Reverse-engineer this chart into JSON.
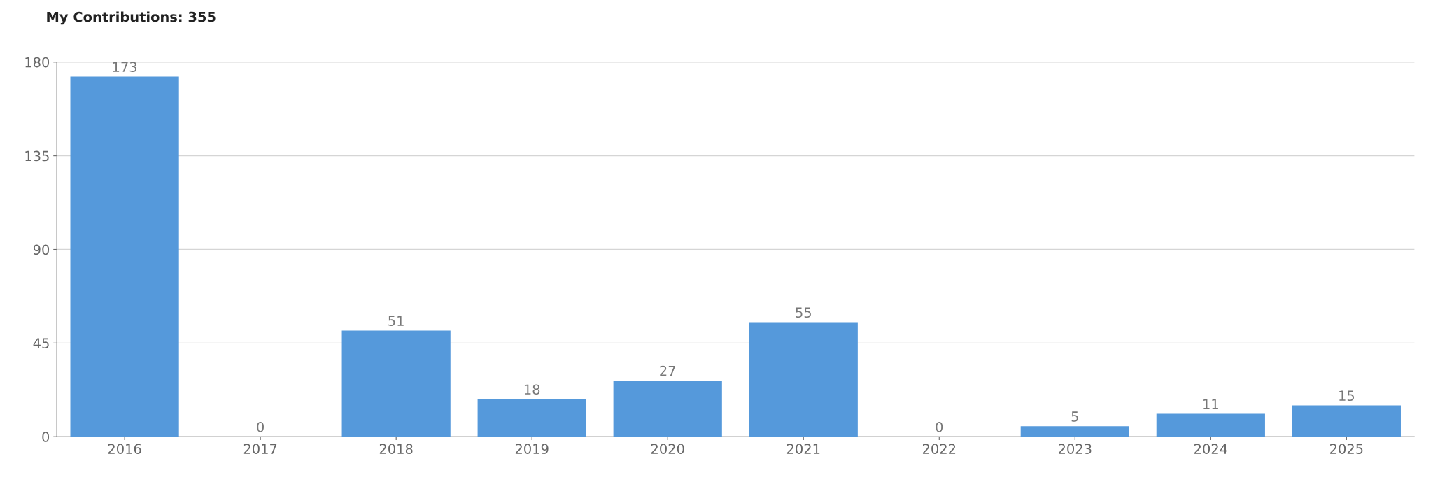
{
  "chart_data": {
    "type": "bar",
    "title": "My Contributions: 355",
    "categories": [
      "2016",
      "2017",
      "2018",
      "2019",
      "2020",
      "2021",
      "2022",
      "2023",
      "2024",
      "2025"
    ],
    "values": [
      173,
      0,
      51,
      18,
      27,
      55,
      0,
      5,
      11,
      15
    ],
    "color": "#5599db",
    "ylim": [
      0,
      180
    ],
    "yticks": [
      0,
      45,
      90,
      135,
      180
    ],
    "grid": "y",
    "data_labels": true,
    "legend": false
  }
}
